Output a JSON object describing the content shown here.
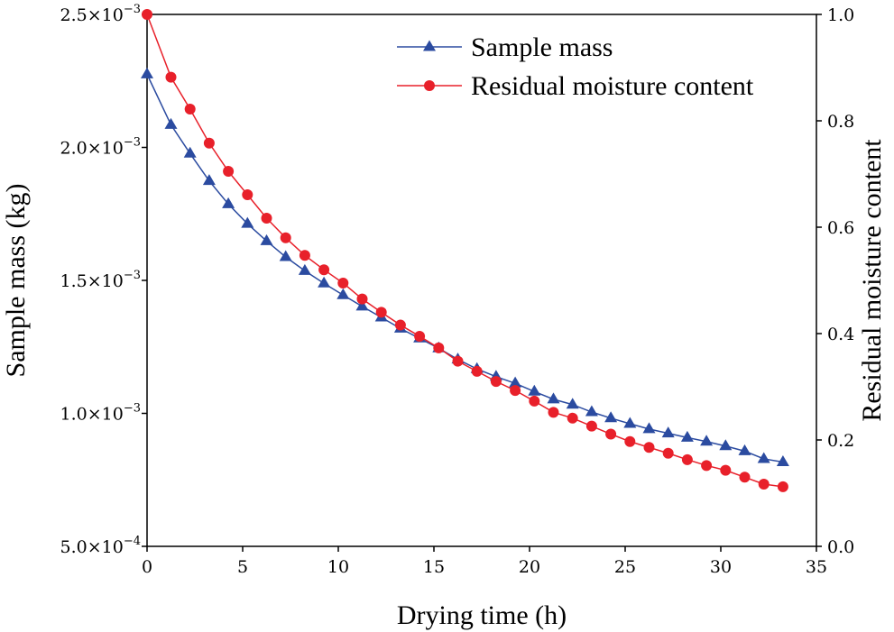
{
  "chart_data": {
    "type": "line",
    "xlabel": "Drying time (h)",
    "ylabel_left": "Sample mass (kg)",
    "ylabel_right": "Residual moisture content",
    "xlim": [
      0,
      35
    ],
    "ylim_left": [
      0.0005,
      0.0025
    ],
    "ylim_right": [
      0.0,
      1.0
    ],
    "x_ticks": [
      {
        "value": 0,
        "label": "0"
      },
      {
        "value": 5,
        "label": "5"
      },
      {
        "value": 10,
        "label": "10"
      },
      {
        "value": 15,
        "label": "15"
      },
      {
        "value": 20,
        "label": "20"
      },
      {
        "value": 25,
        "label": "25"
      },
      {
        "value": 30,
        "label": "30"
      },
      {
        "value": 35,
        "label": "35"
      }
    ],
    "y_left_ticks": [
      {
        "value": 0.0005,
        "mantissa": "5.0×10",
        "exponent": "−4"
      },
      {
        "value": 0.001,
        "mantissa": "1.0×10",
        "exponent": "−3"
      },
      {
        "value": 0.0015,
        "mantissa": "1.5×10",
        "exponent": "−3"
      },
      {
        "value": 0.002,
        "mantissa": "2.0×10",
        "exponent": "−3"
      },
      {
        "value": 0.0025,
        "mantissa": "2.5×10",
        "exponent": "−3"
      }
    ],
    "y_right_ticks": [
      {
        "value": 0.0,
        "label": "0.0"
      },
      {
        "value": 0.2,
        "label": "0.2"
      },
      {
        "value": 0.4,
        "label": "0.4"
      },
      {
        "value": 0.6,
        "label": "0.6"
      },
      {
        "value": 0.8,
        "label": "0.8"
      },
      {
        "value": 1.0,
        "label": "1.0"
      }
    ],
    "legend_position": "top-right",
    "series": [
      {
        "name": "Sample mass",
        "axis": "left",
        "marker": "triangle",
        "color": "#2b4ba0",
        "x": [
          0,
          1.25,
          2.25,
          3.25,
          4.25,
          5.25,
          6.25,
          7.25,
          8.25,
          9.25,
          10.25,
          11.25,
          12.25,
          13.25,
          14.25,
          15.25,
          16.25,
          17.25,
          18.25,
          19.25,
          20.25,
          21.25,
          22.25,
          23.25,
          24.25,
          25.25,
          26.25,
          27.25,
          28.25,
          29.25,
          30.25,
          31.25,
          32.25,
          33.25
        ],
        "values": [
          0.002275,
          0.002085,
          0.001977,
          0.001874,
          0.001787,
          0.001713,
          0.001648,
          0.001588,
          0.001536,
          0.001489,
          0.001445,
          0.001402,
          0.001361,
          0.001319,
          0.001282,
          0.001245,
          0.001203,
          0.001167,
          0.001138,
          0.001113,
          0.001082,
          0.001053,
          0.001033,
          0.001005,
          0.000982,
          0.000961,
          0.000941,
          0.000925,
          0.000909,
          0.000894,
          0.000877,
          0.000858,
          0.000829,
          0.000817
        ]
      },
      {
        "name": "Residual moisture content",
        "axis": "right",
        "marker": "circle",
        "color": "#e8202a",
        "x": [
          0,
          1.25,
          2.25,
          3.25,
          4.25,
          5.25,
          6.25,
          7.25,
          8.25,
          9.25,
          10.25,
          11.25,
          12.25,
          13.25,
          14.25,
          15.25,
          16.25,
          17.25,
          18.25,
          19.25,
          20.25,
          21.25,
          22.25,
          23.25,
          24.25,
          25.25,
          26.25,
          27.25,
          28.25,
          29.25,
          30.25,
          31.25,
          32.25,
          33.25
        ],
        "values": [
          1.0,
          0.882,
          0.822,
          0.758,
          0.705,
          0.661,
          0.617,
          0.58,
          0.547,
          0.52,
          0.495,
          0.465,
          0.44,
          0.416,
          0.395,
          0.373,
          0.348,
          0.329,
          0.31,
          0.293,
          0.273,
          0.252,
          0.241,
          0.226,
          0.211,
          0.197,
          0.186,
          0.175,
          0.163,
          0.152,
          0.143,
          0.13,
          0.117,
          0.112
        ]
      }
    ]
  }
}
